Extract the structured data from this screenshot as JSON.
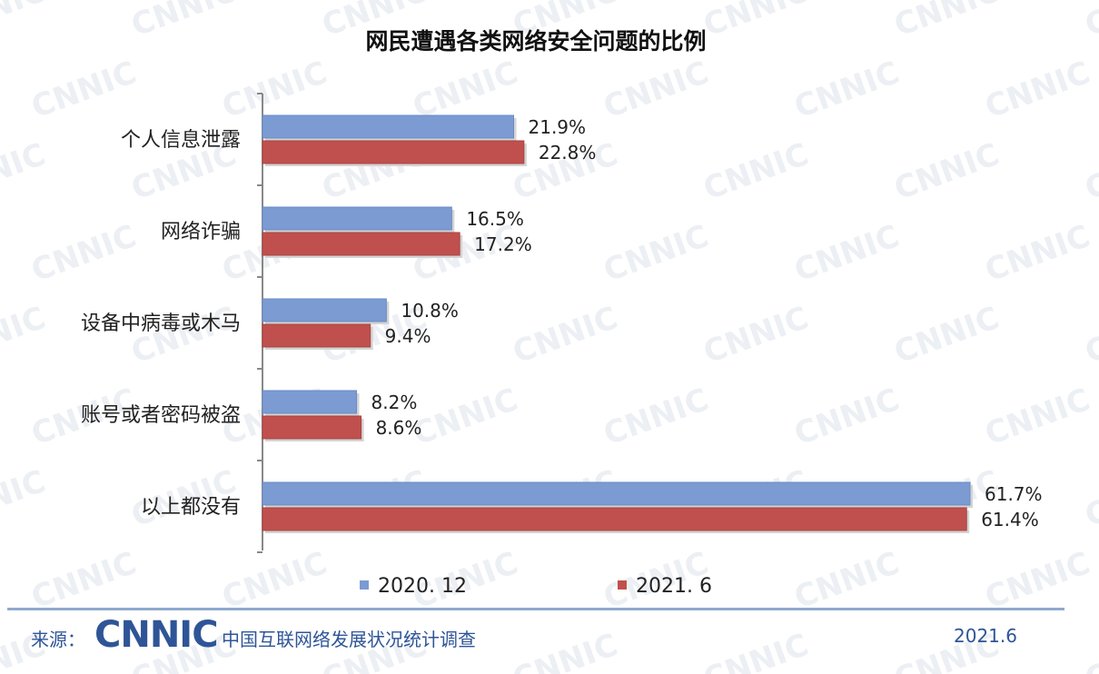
{
  "chart_data": {
    "type": "bar",
    "orientation": "horizontal",
    "title": "网民遭遇各类网络安全问题的比例",
    "categories": [
      "个人信息泄露",
      "网络诈骗",
      "设备中病毒或木马",
      "账号或者密码被盗",
      "以上都没有"
    ],
    "series": [
      {
        "name": "2020. 12",
        "values": [
          21.9,
          16.5,
          10.8,
          8.2,
          61.7
        ],
        "labels": [
          "21.9%",
          "16.5%",
          "10.8%",
          "8.2%",
          "61.7%"
        ],
        "color": "#7b9bd2"
      },
      {
        "name": "2021. 6",
        "values": [
          22.8,
          17.2,
          9.4,
          8.6,
          61.4
        ],
        "labels": [
          "22.8%",
          "17.2%",
          "9.4%",
          "8.6%",
          "61.4%"
        ],
        "color": "#c0504d"
      }
    ],
    "xlim": [
      0,
      62
    ],
    "legend": "bottom",
    "grid": false
  },
  "footer": {
    "source_label": "来源：",
    "brand": "CNNIC",
    "survey": "中国互联网络发展状况统计调查",
    "date": "2021.6"
  },
  "watermark": {
    "text": "CNNIC"
  }
}
